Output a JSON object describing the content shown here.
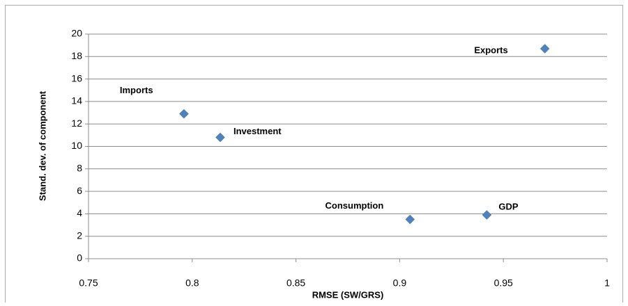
{
  "chart_data": {
    "type": "scatter",
    "x_label": "RMSE (SW/GRS)",
    "y_label": "Stand. dev. of component",
    "labels": [
      "Exports",
      "Imports",
      "Investment",
      "Consumption",
      "GDP"
    ],
    "x": [
      0.97,
      0.796,
      0.8135,
      0.905,
      0.942
    ],
    "values": [
      18.7,
      12.9,
      10.8,
      3.5,
      3.9
    ],
    "color": "#4f81bd",
    "xlim": [
      0.75,
      1
    ],
    "xticks": [
      0.75,
      0.8,
      0.85,
      0.9,
      0.95,
      1
    ],
    "ylim": [
      0,
      20
    ],
    "yticks": [
      0,
      2,
      4,
      6,
      8,
      10,
      12,
      14,
      16,
      18,
      20
    ],
    "grid": true
  }
}
